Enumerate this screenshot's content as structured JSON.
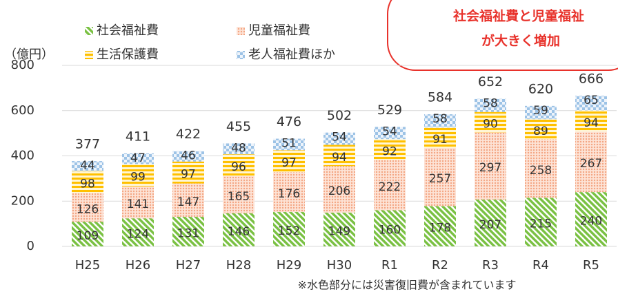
{
  "chart_data": {
    "type": "stacked_bar",
    "y_unit_label": "（億円）",
    "categories": [
      "H25",
      "H26",
      "H27",
      "H28",
      "H29",
      "H30",
      "R1",
      "R2",
      "R3",
      "R4",
      "R5"
    ],
    "series": [
      {
        "name": "社会福祉費",
        "color": "#7ac143",
        "values": [
          109,
          124,
          131,
          146,
          152,
          149,
          160,
          178,
          207,
          215,
          240
        ]
      },
      {
        "name": "児童福祉費",
        "color": "#f4a582",
        "values": [
          126,
          141,
          147,
          165,
          176,
          206,
          222,
          257,
          297,
          258,
          267
        ]
      },
      {
        "name": "生活保護費",
        "color": "#ffc000",
        "values": [
          98,
          99,
          97,
          96,
          97,
          94,
          92,
          91,
          90,
          89,
          94
        ]
      },
      {
        "name": "老人福祉費ほか",
        "color": "#9dc3e6",
        "values": [
          44,
          47,
          46,
          48,
          51,
          54,
          54,
          58,
          58,
          59,
          65
        ]
      }
    ],
    "totals": [
      377,
      411,
      422,
      455,
      476,
      502,
      529,
      584,
      652,
      620,
      666
    ],
    "ylim": [
      0,
      800
    ],
    "yticks": [
      0,
      200,
      400,
      600,
      800
    ],
    "grid": true,
    "annotation": [
      "社会福祉費と児童福祉",
      "が大きく増加"
    ],
    "footnote": "※水色部分には災害復旧費が含まれています"
  }
}
